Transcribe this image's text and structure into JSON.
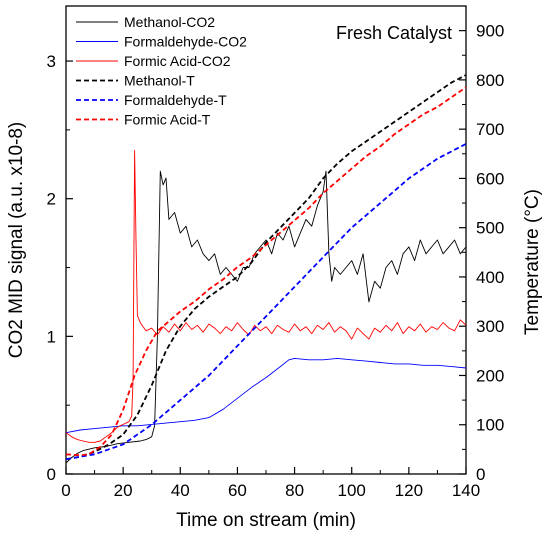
{
  "chart_data": {
    "type": "line",
    "title": "Fresh Catalyst",
    "xlabel": "Time on stream (min)",
    "ylabel_left": "CO2 MID signal (a.u. x10-8)",
    "ylabel_right": "Temperature (°C)",
    "xlim": [
      0,
      140
    ],
    "ylim_left": [
      0,
      3.4
    ],
    "ylim_right": [
      0,
      950
    ],
    "x_ticks": [
      0,
      20,
      40,
      60,
      80,
      100,
      120,
      140
    ],
    "y_left_ticks": [
      0,
      1,
      2,
      3
    ],
    "y_right_ticks": [
      0,
      100,
      200,
      300,
      400,
      500,
      600,
      700,
      800,
      900
    ],
    "legend": "top-left",
    "grid": false,
    "colors": {
      "methanol": "#000000",
      "formaldehyde": "#0000ff",
      "formic_acid": "#ff0000"
    },
    "series": [
      {
        "name": "Methanol-CO2",
        "axis": "left",
        "style": "solid",
        "color": "#000000",
        "points": [
          [
            0,
            0.08
          ],
          [
            2,
            0.12
          ],
          [
            4,
            0.15
          ],
          [
            6,
            0.17
          ],
          [
            8,
            0.18
          ],
          [
            10,
            0.19
          ],
          [
            14,
            0.2
          ],
          [
            18,
            0.22
          ],
          [
            22,
            0.23
          ],
          [
            26,
            0.24
          ],
          [
            28,
            0.25
          ],
          [
            30,
            0.27
          ],
          [
            31,
            0.35
          ],
          [
            32,
            1.0
          ],
          [
            33,
            2.2
          ],
          [
            34,
            2.1
          ],
          [
            35,
            2.15
          ],
          [
            36,
            1.85
          ],
          [
            38,
            1.9
          ],
          [
            40,
            1.75
          ],
          [
            42,
            1.8
          ],
          [
            44,
            1.65
          ],
          [
            46,
            1.7
          ],
          [
            48,
            1.6
          ],
          [
            50,
            1.55
          ],
          [
            52,
            1.6
          ],
          [
            54,
            1.45
          ],
          [
            56,
            1.5
          ],
          [
            58,
            1.45
          ],
          [
            60,
            1.4
          ],
          [
            62,
            1.5
          ],
          [
            64,
            1.5
          ],
          [
            66,
            1.6
          ],
          [
            68,
            1.65
          ],
          [
            70,
            1.7
          ],
          [
            72,
            1.6
          ],
          [
            74,
            1.75
          ],
          [
            76,
            1.7
          ],
          [
            78,
            1.8
          ],
          [
            80,
            1.65
          ],
          [
            82,
            1.75
          ],
          [
            84,
            1.85
          ],
          [
            86,
            1.8
          ],
          [
            88,
            1.95
          ],
          [
            90,
            2.05
          ],
          [
            91,
            2.2
          ],
          [
            92,
            1.6
          ],
          [
            93,
            1.4
          ],
          [
            94,
            1.5
          ],
          [
            96,
            1.45
          ],
          [
            98,
            1.5
          ],
          [
            100,
            1.55
          ],
          [
            102,
            1.45
          ],
          [
            104,
            1.6
          ],
          [
            106,
            1.25
          ],
          [
            108,
            1.4
          ],
          [
            110,
            1.35
          ],
          [
            112,
            1.5
          ],
          [
            114,
            1.55
          ],
          [
            116,
            1.45
          ],
          [
            118,
            1.6
          ],
          [
            120,
            1.65
          ],
          [
            122,
            1.55
          ],
          [
            124,
            1.7
          ],
          [
            126,
            1.6
          ],
          [
            128,
            1.65
          ],
          [
            130,
            1.7
          ],
          [
            132,
            1.6
          ],
          [
            134,
            1.65
          ],
          [
            136,
            1.7
          ],
          [
            138,
            1.6
          ],
          [
            140,
            1.65
          ]
        ]
      },
      {
        "name": "Formaldehyde-CO2",
        "axis": "left",
        "style": "solid",
        "color": "#0000ff",
        "points": [
          [
            0,
            0.3
          ],
          [
            5,
            0.32
          ],
          [
            10,
            0.33
          ],
          [
            15,
            0.34
          ],
          [
            20,
            0.35
          ],
          [
            25,
            0.35
          ],
          [
            30,
            0.36
          ],
          [
            35,
            0.37
          ],
          [
            40,
            0.38
          ],
          [
            45,
            0.39
          ],
          [
            50,
            0.41
          ],
          [
            55,
            0.47
          ],
          [
            60,
            0.55
          ],
          [
            65,
            0.63
          ],
          [
            70,
            0.7
          ],
          [
            75,
            0.78
          ],
          [
            78,
            0.83
          ],
          [
            80,
            0.84
          ],
          [
            85,
            0.83
          ],
          [
            90,
            0.83
          ],
          [
            95,
            0.84
          ],
          [
            100,
            0.83
          ],
          [
            105,
            0.82
          ],
          [
            110,
            0.81
          ],
          [
            115,
            0.8
          ],
          [
            120,
            0.8
          ],
          [
            125,
            0.79
          ],
          [
            130,
            0.79
          ],
          [
            135,
            0.78
          ],
          [
            140,
            0.77
          ]
        ]
      },
      {
        "name": "Formic Acid-CO2",
        "axis": "left",
        "style": "solid",
        "color": "#ff0000",
        "points": [
          [
            0,
            0.3
          ],
          [
            2,
            0.27
          ],
          [
            4,
            0.25
          ],
          [
            6,
            0.24
          ],
          [
            8,
            0.23
          ],
          [
            10,
            0.23
          ],
          [
            12,
            0.24
          ],
          [
            14,
            0.27
          ],
          [
            16,
            0.3
          ],
          [
            18,
            0.34
          ],
          [
            20,
            0.36
          ],
          [
            22,
            0.38
          ],
          [
            23,
            0.42
          ],
          [
            23.5,
            0.7
          ],
          [
            24,
            2.35
          ],
          [
            24.5,
            1.7
          ],
          [
            25,
            1.15
          ],
          [
            26,
            1.1
          ],
          [
            27,
            1.07
          ],
          [
            28,
            1.04
          ],
          [
            30,
            1.06
          ],
          [
            32,
            1.01
          ],
          [
            34,
            1.07
          ],
          [
            36,
            1.03
          ],
          [
            38,
            1.09
          ],
          [
            40,
            1.04
          ],
          [
            42,
            1.1
          ],
          [
            44,
            1.05
          ],
          [
            46,
            1.08
          ],
          [
            48,
            1.03
          ],
          [
            50,
            1.09
          ],
          [
            52,
            1.06
          ],
          [
            54,
            1.02
          ],
          [
            56,
            1.07
          ],
          [
            58,
            1.04
          ],
          [
            60,
            1.1
          ],
          [
            62,
            1.05
          ],
          [
            64,
            1.01
          ],
          [
            66,
            1.08
          ],
          [
            68,
            1.04
          ],
          [
            70,
            1.07
          ],
          [
            72,
            1.02
          ],
          [
            74,
            1.08
          ],
          [
            76,
            1.05
          ],
          [
            78,
            1.03
          ],
          [
            80,
            1.09
          ],
          [
            82,
            1.04
          ],
          [
            84,
            1.07
          ],
          [
            86,
            1.02
          ],
          [
            88,
            1.08
          ],
          [
            90,
            1.05
          ],
          [
            92,
            1.1
          ],
          [
            94,
            1.03
          ],
          [
            96,
            1.07
          ],
          [
            98,
            1.04
          ],
          [
            100,
            0.98
          ],
          [
            102,
            1.06
          ],
          [
            104,
            1.02
          ],
          [
            106,
            0.98
          ],
          [
            108,
            1.06
          ],
          [
            110,
            1.03
          ],
          [
            112,
            1.08
          ],
          [
            114,
            1.04
          ],
          [
            116,
            1.1
          ],
          [
            118,
            1.02
          ],
          [
            120,
            1.07
          ],
          [
            122,
            1.04
          ],
          [
            124,
            1.09
          ],
          [
            126,
            1.03
          ],
          [
            128,
            1.07
          ],
          [
            130,
            1.05
          ],
          [
            132,
            1.1
          ],
          [
            134,
            1.06
          ],
          [
            136,
            1.04
          ],
          [
            138,
            1.12
          ],
          [
            140,
            1.08
          ]
        ]
      },
      {
        "name": "Methanol-T",
        "axis": "right",
        "style": "dashed",
        "color": "#000000",
        "points": [
          [
            0,
            30
          ],
          [
            5,
            35
          ],
          [
            10,
            45
          ],
          [
            15,
            60
          ],
          [
            20,
            80
          ],
          [
            25,
            120
          ],
          [
            30,
            180
          ],
          [
            35,
            250
          ],
          [
            40,
            300
          ],
          [
            45,
            335
          ],
          [
            50,
            360
          ],
          [
            55,
            380
          ],
          [
            60,
            400
          ],
          [
            65,
            430
          ],
          [
            70,
            470
          ],
          [
            75,
            500
          ],
          [
            80,
            530
          ],
          [
            85,
            560
          ],
          [
            90,
            600
          ],
          [
            95,
            630
          ],
          [
            100,
            655
          ],
          [
            105,
            675
          ],
          [
            110,
            695
          ],
          [
            115,
            715
          ],
          [
            120,
            735
          ],
          [
            125,
            755
          ],
          [
            130,
            775
          ],
          [
            135,
            795
          ],
          [
            140,
            810
          ]
        ]
      },
      {
        "name": "Formaldehyde-T",
        "axis": "right",
        "style": "dashed",
        "color": "#0000ff",
        "points": [
          [
            0,
            30
          ],
          [
            10,
            40
          ],
          [
            20,
            60
          ],
          [
            30,
            100
          ],
          [
            40,
            150
          ],
          [
            50,
            200
          ],
          [
            60,
            260
          ],
          [
            70,
            320
          ],
          [
            80,
            380
          ],
          [
            90,
            440
          ],
          [
            100,
            500
          ],
          [
            110,
            550
          ],
          [
            120,
            600
          ],
          [
            130,
            640
          ],
          [
            140,
            670
          ]
        ]
      },
      {
        "name": "Formic Acid-T",
        "axis": "right",
        "style": "dashed",
        "color": "#ff0000",
        "points": [
          [
            0,
            40
          ],
          [
            5,
            38
          ],
          [
            8,
            40
          ],
          [
            12,
            55
          ],
          [
            16,
            80
          ],
          [
            20,
            130
          ],
          [
            24,
            200
          ],
          [
            28,
            250
          ],
          [
            32,
            290
          ],
          [
            36,
            310
          ],
          [
            40,
            330
          ],
          [
            45,
            350
          ],
          [
            50,
            375
          ],
          [
            55,
            395
          ],
          [
            60,
            420
          ],
          [
            65,
            440
          ],
          [
            70,
            465
          ],
          [
            75,
            490
          ],
          [
            80,
            515
          ],
          [
            85,
            540
          ],
          [
            90,
            570
          ],
          [
            95,
            595
          ],
          [
            100,
            620
          ],
          [
            105,
            645
          ],
          [
            110,
            665
          ],
          [
            115,
            690
          ],
          [
            120,
            710
          ],
          [
            125,
            730
          ],
          [
            130,
            745
          ],
          [
            135,
            765
          ],
          [
            140,
            785
          ]
        ]
      }
    ]
  }
}
